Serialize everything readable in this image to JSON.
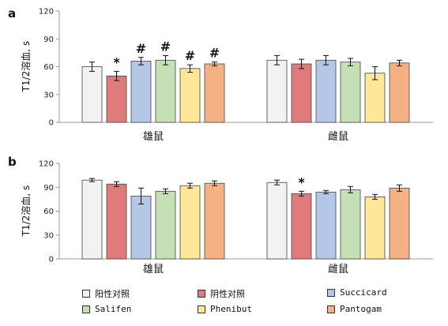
{
  "chart_data": [
    {
      "panel_label": "a",
      "type": "bar",
      "ylabel": "T1/2溶血, s",
      "ylim": [
        0,
        120
      ],
      "yticks": [
        0,
        30,
        60,
        90,
        120
      ],
      "categories": [
        "雄鼠",
        "雌鼠"
      ],
      "series": [
        {
          "name": "阳性对照",
          "values": [
            60,
            67
          ],
          "errors": [
            5,
            5
          ],
          "markers": [
            "",
            ""
          ]
        },
        {
          "name": "阴性对照",
          "values": [
            50,
            63
          ],
          "errors": [
            5,
            5
          ],
          "markers": [
            "*",
            ""
          ]
        },
        {
          "name": "Succicard",
          "values": [
            66,
            67
          ],
          "errors": [
            4,
            5
          ],
          "markers": [
            "#",
            ""
          ]
        },
        {
          "name": "Salifen",
          "values": [
            67,
            65
          ],
          "errors": [
            5,
            4
          ],
          "markers": [
            "#",
            ""
          ]
        },
        {
          "name": "Phenibut",
          "values": [
            58,
            53
          ],
          "errors": [
            4,
            7
          ],
          "markers": [
            "#",
            ""
          ]
        },
        {
          "name": "Pantogam",
          "values": [
            63,
            64
          ],
          "errors": [
            2,
            3
          ],
          "markers": [
            "#",
            ""
          ]
        }
      ]
    },
    {
      "panel_label": "b",
      "type": "bar",
      "ylabel": "T1/2溶血, s",
      "ylim": [
        0,
        120
      ],
      "yticks": [
        0,
        30,
        60,
        90,
        120
      ],
      "categories": [
        "雄鼠",
        "雌鼠"
      ],
      "series": [
        {
          "name": "阳性对照",
          "values": [
            99,
            96
          ],
          "errors": [
            2,
            3
          ],
          "markers": [
            "",
            ""
          ]
        },
        {
          "name": "阴性对照",
          "values": [
            94,
            82
          ],
          "errors": [
            3,
            3
          ],
          "markers": [
            "",
            "*"
          ]
        },
        {
          "name": "Succicard",
          "values": [
            79,
            84
          ],
          "errors": [
            10,
            2
          ],
          "markers": [
            "",
            ""
          ]
        },
        {
          "name": "Salifen",
          "values": [
            85,
            87
          ],
          "errors": [
            3,
            4
          ],
          "markers": [
            "",
            ""
          ]
        },
        {
          "name": "Phenibut",
          "values": [
            92,
            78
          ],
          "errors": [
            3,
            3
          ],
          "markers": [
            "",
            ""
          ]
        },
        {
          "name": "Pantogam",
          "values": [
            95,
            89
          ],
          "errors": [
            3,
            4
          ],
          "markers": [
            "",
            ""
          ]
        }
      ]
    }
  ],
  "colors": [
    "#f2f2f2",
    "#e07b7b",
    "#b4c7e7",
    "#c5e0b4",
    "#ffe699",
    "#f4b183"
  ],
  "legend": {
    "placement": "bottom",
    "items": [
      {
        "name": "阳性对照",
        "color": "#f2f2f2"
      },
      {
        "name": "阴性对照",
        "color": "#e07b7b"
      },
      {
        "name": "Succicard",
        "color": "#b4c7e7"
      },
      {
        "name": "Salifen",
        "color": "#c5e0b4"
      },
      {
        "name": "Phenibut",
        "color": "#ffe699"
      },
      {
        "name": "Pantogam",
        "color": "#f4b183"
      }
    ]
  }
}
